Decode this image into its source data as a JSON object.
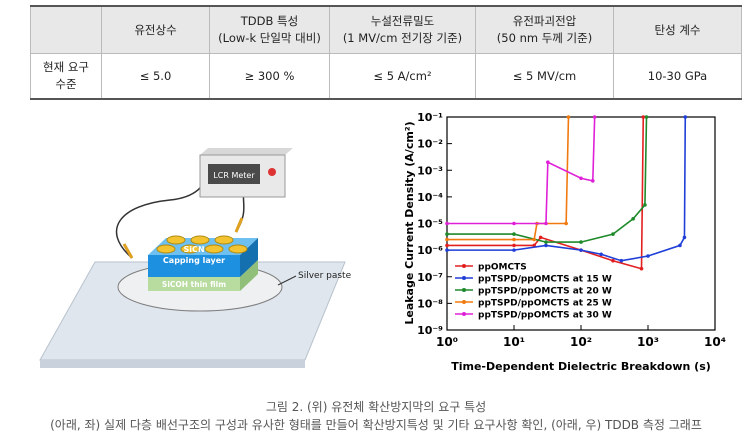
{
  "table": {
    "header": [
      [
        "유전상수"
      ],
      [
        "TDDB 특성",
        "(Low-k 단일막 대비)"
      ],
      [
        "누설전류밀도",
        "(1 MV/cm 전기장 기준)"
      ],
      [
        "유전파괴전압",
        "(50 nm 두께 기준)"
      ],
      [
        "탄성 계수"
      ]
    ],
    "row_label": [
      "현재 요구",
      "수준"
    ],
    "row": [
      "≤ 5.0",
      "≥ 300 %",
      "≤ 5 A/cm²",
      "≤ 5 MV/cm",
      "10-30 GPa"
    ]
  },
  "diagram": {
    "meter": "LCR Meter",
    "cap_layer": [
      "SiCN",
      "Capping layer"
    ],
    "film": "SiCOH thin film",
    "paste": "Silver paste"
  },
  "chart_data": {
    "type": "line",
    "x_label": "Time-Dependent Dielectric Breakdown (s)",
    "y_label": "Leakage Current Density (A/cm²)",
    "log_x": true,
    "log_y": true,
    "xlim": [
      1,
      10000
    ],
    "ylim": [
      1e-09,
      0.1
    ],
    "xticks": [
      {
        "value": 1,
        "label": "10⁰"
      },
      {
        "value": 10,
        "label": "10¹"
      },
      {
        "value": 100,
        "label": "10²"
      },
      {
        "value": 1000,
        "label": "10³"
      },
      {
        "value": 10000,
        "label": "10⁴"
      }
    ],
    "yticks": [
      {
        "value": 1e-09,
        "label": "10⁻⁹"
      },
      {
        "value": 1e-08,
        "label": "10⁻⁸"
      },
      {
        "value": 1e-07,
        "label": "10⁻⁷"
      },
      {
        "value": 1e-06,
        "label": "10⁻⁶"
      },
      {
        "value": 1e-05,
        "label": "10⁻⁵"
      },
      {
        "value": 0.0001,
        "label": "10⁻⁴"
      },
      {
        "value": 0.001,
        "label": "10⁻³"
      },
      {
        "value": 0.01,
        "label": "10⁻²"
      },
      {
        "value": 0.1,
        "label": "10⁻¹"
      }
    ],
    "legend": "lower left",
    "series": [
      {
        "name": "ppOMCTS",
        "color": "#e32020",
        "x": [
          1,
          10,
          20,
          25,
          100,
          300,
          800,
          850
        ],
        "values": [
          1.5e-06,
          1.5e-06,
          1.5e-06,
          3e-06,
          1e-06,
          4e-07,
          2e-07,
          0.1
        ]
      },
      {
        "name": "ppTSPD/ppOMCTS at 15 W",
        "color": "#1f3fd8",
        "x": [
          1,
          10,
          30,
          100,
          200,
          400,
          1000,
          3000,
          3500,
          3600
        ],
        "values": [
          1e-06,
          1e-06,
          1.5e-06,
          1e-06,
          7e-07,
          4e-07,
          6e-07,
          1.5e-06,
          3e-06,
          0.1
        ]
      },
      {
        "name": "ppTSPD/ppOMCTS at 20 W",
        "color": "#1e8a2a",
        "x": [
          1,
          10,
          30,
          100,
          300,
          600,
          900,
          950
        ],
        "values": [
          4e-06,
          4e-06,
          2e-06,
          2e-06,
          4e-06,
          1.5e-05,
          5e-05,
          0.1
        ]
      },
      {
        "name": "ppTSPD/ppOMCTS at 25 W",
        "color": "#f07a10",
        "x": [
          1,
          10,
          20,
          22,
          60,
          65
        ],
        "values": [
          2.5e-06,
          2.5e-06,
          2.5e-06,
          1e-05,
          1e-05,
          0.1
        ]
      },
      {
        "name": "ppTSPD/ppOMCTS at 30 W",
        "color": "#e020d8",
        "x": [
          1,
          10,
          30,
          32,
          100,
          150,
          160
        ],
        "values": [
          1e-05,
          1e-05,
          1e-05,
          0.002,
          0.0005,
          0.0004,
          0.1
        ]
      }
    ]
  },
  "caption": [
    "그림 2. (위) 유전체 확산방지막의 요구 특성",
    "(아래, 좌) 실제 다층 배선구조의 구성과 유사한 형태를 만들어 확산방지특성 및 기타 요구사항 확인, (아래, 우) TDDB 측정 그래프"
  ]
}
